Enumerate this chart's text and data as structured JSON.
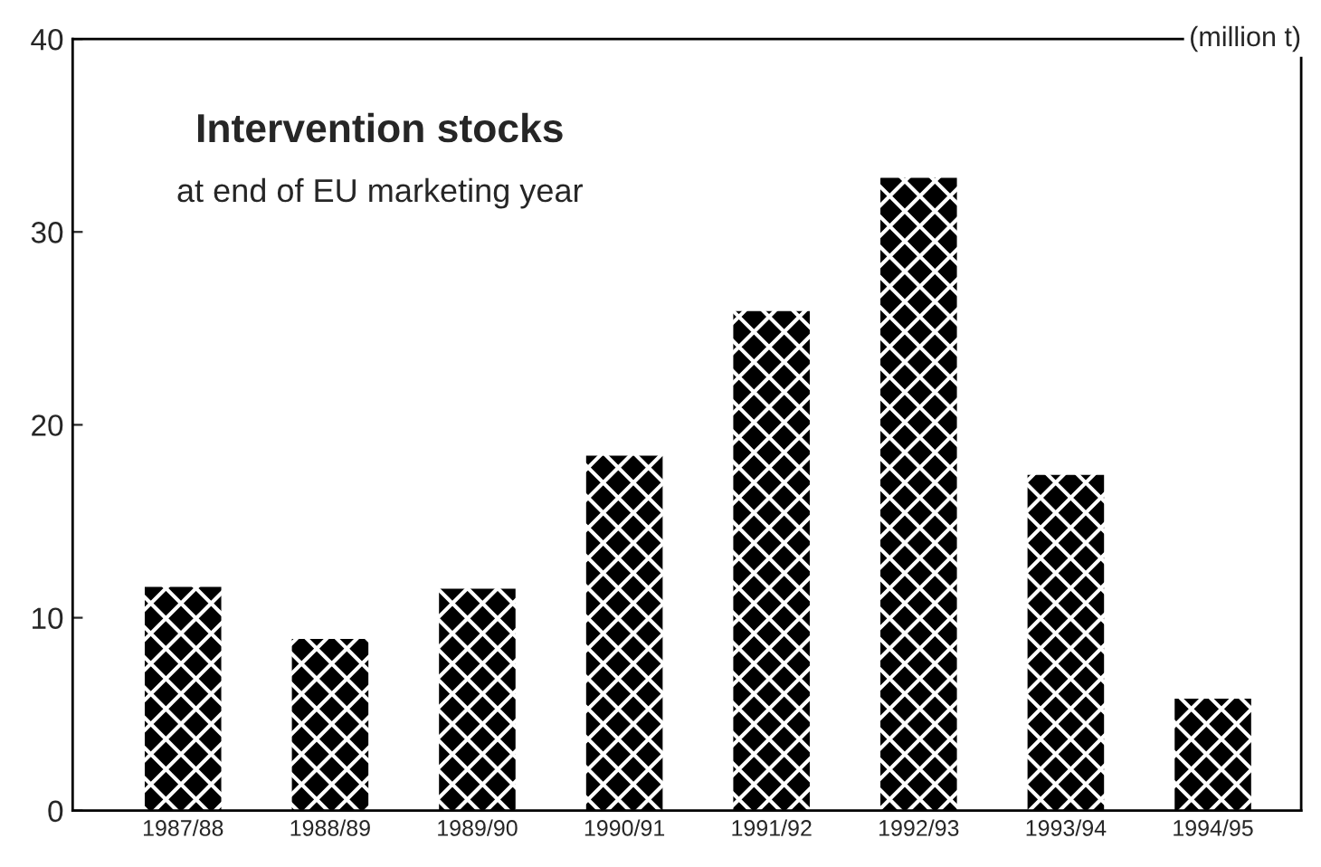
{
  "chart_data": {
    "type": "bar",
    "title": "Intervention stocks",
    "subtitle": "at end of EU marketing year",
    "ylabel": "(million t)",
    "categories": [
      "1987/88",
      "1988/89",
      "1989/90",
      "1990/91",
      "1991/92",
      "1992/93",
      "1993/94",
      "1994/95"
    ],
    "values": [
      11.6,
      8.9,
      11.5,
      18.4,
      25.9,
      32.8,
      17.4,
      5.8
    ],
    "color": "#000000",
    "ylim": [
      0,
      40
    ],
    "yticks": [
      0,
      10,
      20,
      30,
      40
    ],
    "grid": false,
    "legend": false
  }
}
